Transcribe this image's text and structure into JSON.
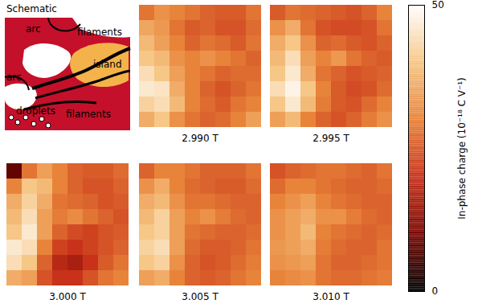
{
  "chart_data": {
    "type": "heatmap",
    "panels": [
      {
        "title": "2.990 T",
        "cells": [
          [
            28,
            32,
            30,
            28,
            26,
            25,
            25,
            28
          ],
          [
            35,
            33,
            28,
            25,
            26,
            24,
            24,
            27
          ],
          [
            38,
            34,
            30,
            26,
            28,
            27,
            25,
            28
          ],
          [
            40,
            38,
            32,
            30,
            32,
            30,
            28,
            26
          ],
          [
            44,
            40,
            34,
            30,
            28,
            26,
            27,
            27
          ],
          [
            46,
            45,
            36,
            30,
            26,
            24,
            26,
            28
          ],
          [
            42,
            44,
            38,
            30,
            27,
            25,
            28,
            30
          ],
          [
            36,
            40,
            32,
            28,
            26,
            27,
            30,
            34
          ]
        ]
      },
      {
        "title": "2.995 T",
        "cells": [
          [
            25,
            28,
            27,
            26,
            25,
            24,
            26,
            30
          ],
          [
            32,
            36,
            28,
            24,
            23,
            23,
            24,
            28
          ],
          [
            36,
            40,
            32,
            26,
            27,
            25,
            24,
            26
          ],
          [
            38,
            44,
            34,
            30,
            33,
            28,
            26,
            25
          ],
          [
            40,
            46,
            36,
            28,
            26,
            24,
            25,
            26
          ],
          [
            44,
            48,
            40,
            30,
            25,
            23,
            24,
            27
          ],
          [
            40,
            46,
            38,
            29,
            25,
            24,
            27,
            30
          ],
          [
            34,
            38,
            30,
            26,
            24,
            26,
            29,
            32
          ]
        ]
      },
      {
        "title": "3.000 T",
        "cells": [
          [
            8,
            28,
            34,
            30,
            26,
            25,
            25,
            27
          ],
          [
            30,
            40,
            38,
            30,
            26,
            24,
            24,
            26
          ],
          [
            36,
            42,
            36,
            28,
            27,
            26,
            24,
            25
          ],
          [
            38,
            44,
            34,
            29,
            31,
            28,
            26,
            24
          ],
          [
            40,
            46,
            34,
            26,
            23,
            22,
            24,
            25
          ],
          [
            46,
            44,
            30,
            22,
            20,
            22,
            24,
            26
          ],
          [
            44,
            40,
            26,
            18,
            16,
            20,
            25,
            28
          ],
          [
            36,
            34,
            24,
            20,
            20,
            24,
            28,
            30
          ]
        ]
      },
      {
        "title": "3.005 T",
        "cells": [
          [
            26,
            30,
            30,
            28,
            26,
            26,
            26,
            28
          ],
          [
            32,
            36,
            30,
            27,
            26,
            25,
            25,
            27
          ],
          [
            36,
            38,
            32,
            28,
            28,
            27,
            26,
            26
          ],
          [
            38,
            42,
            34,
            30,
            32,
            29,
            27,
            26
          ],
          [
            40,
            42,
            34,
            28,
            27,
            26,
            26,
            27
          ],
          [
            42,
            44,
            34,
            27,
            25,
            25,
            26,
            28
          ],
          [
            40,
            42,
            32,
            26,
            24,
            25,
            27,
            29
          ],
          [
            34,
            36,
            30,
            26,
            25,
            26,
            28,
            30
          ]
        ]
      },
      {
        "title": "3.010 T",
        "cells": [
          [
            24,
            26,
            27,
            28,
            28,
            27,
            26,
            28
          ],
          [
            27,
            30,
            30,
            28,
            27,
            26,
            26,
            27
          ],
          [
            30,
            32,
            34,
            30,
            28,
            27,
            26,
            26
          ],
          [
            32,
            34,
            36,
            32,
            32,
            29,
            27,
            26
          ],
          [
            32,
            34,
            38,
            30,
            28,
            27,
            26,
            27
          ],
          [
            33,
            34,
            36,
            29,
            27,
            26,
            26,
            28
          ],
          [
            32,
            33,
            34,
            28,
            26,
            26,
            27,
            28
          ],
          [
            30,
            31,
            32,
            28,
            27,
            27,
            28,
            29
          ]
        ]
      }
    ],
    "colorbar": {
      "label": "In-phase charge (10⁻¹⁸ C V⁻¹)",
      "range": [
        0,
        50
      ],
      "ticks": [
        0,
        50
      ]
    }
  },
  "schematic": {
    "title": "Schematic",
    "labels": [
      "arc",
      "filaments",
      "island",
      "arc",
      "droplets",
      "filaments"
    ]
  }
}
